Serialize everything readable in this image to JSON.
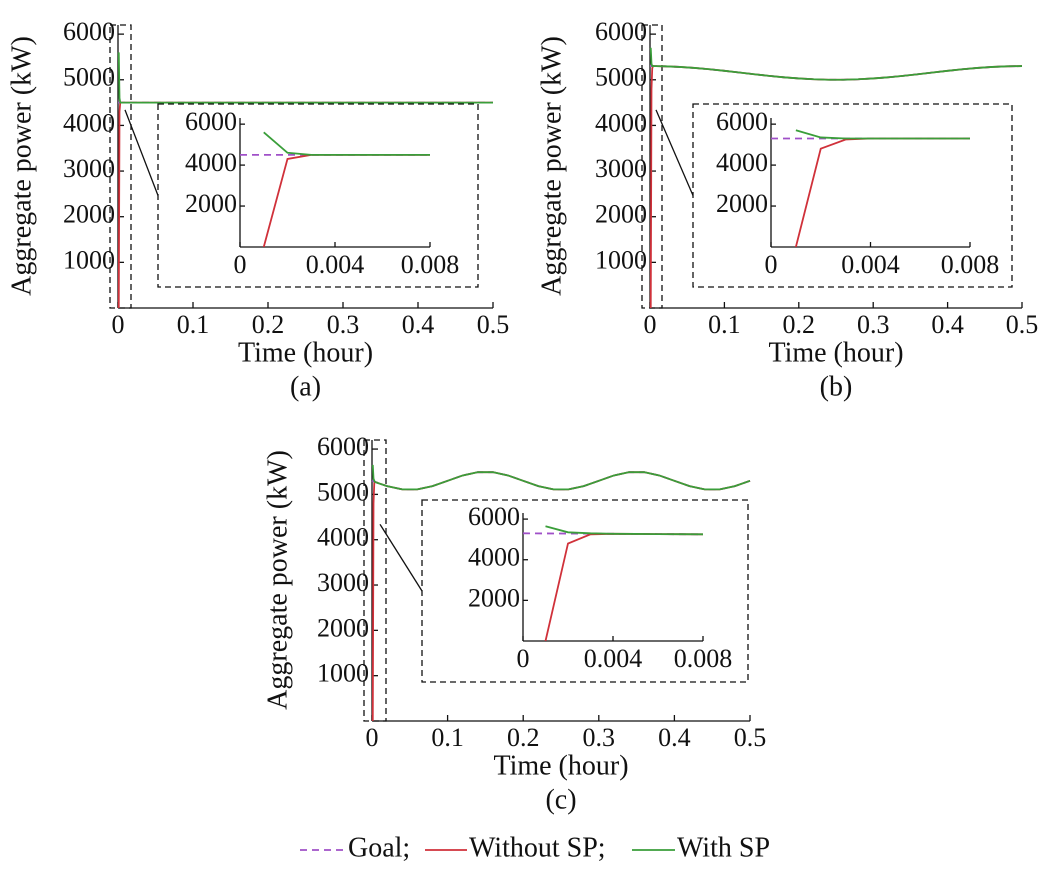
{
  "chart_data": [
    {
      "type": "line",
      "label": "(a)",
      "xlabel": "Time (hour)",
      "ylabel": "Aggregate power (kW)",
      "xlim": [
        0,
        0.5
      ],
      "ylim": [
        0,
        6200
      ],
      "xticks": [
        0,
        0.1,
        0.2,
        0.3,
        0.4,
        0.5
      ],
      "yticks": [
        1000,
        2000,
        3000,
        4000,
        5000,
        6000
      ],
      "x": [
        0,
        0.001,
        0.002,
        0.003,
        0.004,
        0.005,
        0.006,
        0.007,
        0.008,
        0.02,
        0.04,
        0.06,
        0.08,
        0.1,
        0.12,
        0.14,
        0.16,
        0.18,
        0.2,
        0.22,
        0.24,
        0.26,
        0.28,
        0.3,
        0.32,
        0.34,
        0.36,
        0.38,
        0.4,
        0.42,
        0.44,
        0.46,
        0.48,
        0.5
      ],
      "series": [
        {
          "color": "#a050c8",
          "dashed": true,
          "values": [
            4500,
            4500,
            4500,
            4500,
            4500,
            4500,
            4500,
            4500,
            4500,
            4500,
            4500,
            4500,
            4500,
            4500,
            4500,
            4500,
            4500,
            4500,
            4500,
            4500,
            4500,
            4500,
            4500,
            4500,
            4500,
            4500,
            4500,
            4500,
            4500,
            4500,
            4500,
            4500,
            4500,
            4500
          ]
        },
        {
          "color": "#d0313a",
          "values": [
            null,
            0,
            4300,
            4500,
            4500,
            4500,
            4500,
            4500,
            4500,
            4500,
            4500,
            4500,
            4500,
            4500,
            4500,
            4500,
            4500,
            4500,
            4500,
            4500,
            4500,
            4500,
            4500,
            4500,
            4500,
            4500,
            4500,
            4500,
            4500,
            4500,
            4500,
            4500,
            4500,
            4500
          ]
        },
        {
          "color": "#3a9e3a",
          "values": [
            null,
            5600,
            4600,
            4500,
            4500,
            4500,
            4500,
            4500,
            4500,
            4500,
            4500,
            4500,
            4500,
            4500,
            4500,
            4500,
            4500,
            4500,
            4500,
            4500,
            4500,
            4500,
            4500,
            4500,
            4500,
            4500,
            4500,
            4500,
            4500,
            4500,
            4500,
            4500,
            4500,
            4500
          ]
        }
      ],
      "inset": {
        "xlim": [
          0,
          0.008
        ],
        "ylim": [
          0,
          6300
        ],
        "xticks": [
          0,
          0.004,
          0.008
        ],
        "yticks": [
          2000,
          4000,
          6000
        ]
      }
    },
    {
      "type": "line",
      "label": "(b)",
      "xlabel": "Time (hour)",
      "ylabel": "Aggregate power (kW)",
      "xlim": [
        0,
        0.5
      ],
      "ylim": [
        0,
        6200
      ],
      "xticks": [
        0,
        0.1,
        0.2,
        0.3,
        0.4,
        0.5
      ],
      "yticks": [
        1000,
        2000,
        3000,
        4000,
        5000,
        6000
      ],
      "x": [
        0,
        0.001,
        0.002,
        0.003,
        0.004,
        0.005,
        0.006,
        0.007,
        0.008,
        0.02,
        0.04,
        0.06,
        0.08,
        0.1,
        0.12,
        0.14,
        0.16,
        0.18,
        0.2,
        0.22,
        0.24,
        0.26,
        0.28,
        0.3,
        0.32,
        0.34,
        0.36,
        0.38,
        0.4,
        0.42,
        0.44,
        0.46,
        0.48,
        0.5
      ],
      "series": [
        {
          "color": "#a050c8",
          "dashed": true,
          "values": [
            5300,
            5300,
            5300,
            5300,
            5300,
            5300,
            5299,
            5299,
            5299,
            5295,
            5281,
            5259,
            5230,
            5196,
            5159,
            5122,
            5086,
            5054,
            5029,
            5011,
            5001,
            5001,
            5011,
            5029,
            5054,
            5086,
            5122,
            5159,
            5196,
            5230,
            5259,
            5281,
            5295,
            5300
          ]
        },
        {
          "color": "#d0313a",
          "values": [
            null,
            0,
            4800,
            5250,
            5300,
            5300,
            5299,
            5299,
            5299,
            5295,
            5281,
            5259,
            5230,
            5196,
            5159,
            5122,
            5086,
            5054,
            5029,
            5011,
            5001,
            5001,
            5011,
            5029,
            5054,
            5086,
            5122,
            5159,
            5196,
            5230,
            5259,
            5281,
            5295,
            5300
          ]
        },
        {
          "color": "#3a9e3a",
          "values": [
            null,
            5700,
            5350,
            5300,
            5300,
            5300,
            5299,
            5299,
            5299,
            5295,
            5281,
            5259,
            5230,
            5196,
            5159,
            5122,
            5086,
            5054,
            5029,
            5011,
            5001,
            5001,
            5011,
            5029,
            5054,
            5086,
            5122,
            5159,
            5196,
            5230,
            5259,
            5281,
            5295,
            5300
          ]
        }
      ],
      "inset": {
        "xlim": [
          0,
          0.008
        ],
        "ylim": [
          0,
          6300
        ],
        "xticks": [
          0,
          0.004,
          0.008
        ],
        "yticks": [
          2000,
          4000,
          6000
        ]
      }
    },
    {
      "type": "line",
      "label": "(c)",
      "xlabel": "Time (hour)",
      "ylabel": "Aggregate power (kW)",
      "xlim": [
        0,
        0.5
      ],
      "ylim": [
        0,
        6200
      ],
      "xticks": [
        0,
        0.1,
        0.2,
        0.3,
        0.4,
        0.5
      ],
      "yticks": [
        1000,
        2000,
        3000,
        4000,
        5000,
        6000
      ],
      "x": [
        0,
        0.001,
        0.002,
        0.003,
        0.004,
        0.005,
        0.006,
        0.007,
        0.008,
        0.02,
        0.04,
        0.06,
        0.08,
        0.1,
        0.12,
        0.14,
        0.16,
        0.18,
        0.2,
        0.22,
        0.24,
        0.26,
        0.28,
        0.3,
        0.32,
        0.34,
        0.36,
        0.38,
        0.4,
        0.42,
        0.44,
        0.46,
        0.48,
        0.5
      ],
      "series": [
        {
          "color": "#a050c8",
          "dashed": true,
          "values": [
            5300,
            5294,
            5287,
            5281,
            5275,
            5269,
            5262,
            5256,
            5250,
            5182,
            5110,
            5110,
            5182,
            5300,
            5418,
            5490,
            5490,
            5418,
            5300,
            5182,
            5110,
            5110,
            5182,
            5300,
            5418,
            5490,
            5490,
            5418,
            5300,
            5182,
            5110,
            5110,
            5182,
            5300
          ]
        },
        {
          "color": "#d0313a",
          "values": [
            null,
            0,
            4800,
            5250,
            5275,
            5269,
            5262,
            5256,
            5250,
            5182,
            5110,
            5110,
            5182,
            5300,
            5418,
            5490,
            5490,
            5418,
            5300,
            5182,
            5110,
            5110,
            5182,
            5300,
            5418,
            5490,
            5490,
            5418,
            5300,
            5182,
            5110,
            5110,
            5182,
            5300
          ]
        },
        {
          "color": "#3a9e3a",
          "values": [
            null,
            5650,
            5350,
            5300,
            5275,
            5269,
            5262,
            5256,
            5250,
            5182,
            5110,
            5110,
            5182,
            5300,
            5418,
            5490,
            5490,
            5418,
            5300,
            5182,
            5110,
            5110,
            5182,
            5300,
            5418,
            5490,
            5490,
            5418,
            5300,
            5182,
            5110,
            5110,
            5182,
            5300
          ]
        }
      ],
      "inset": {
        "xlim": [
          0,
          0.008
        ],
        "ylim": [
          0,
          6300
        ],
        "xticks": [
          0,
          0.004,
          0.008
        ],
        "yticks": [
          2000,
          4000,
          6000
        ]
      }
    }
  ],
  "legend": {
    "entries": [
      "Goal;",
      "Without SP;",
      "With SP"
    ]
  }
}
